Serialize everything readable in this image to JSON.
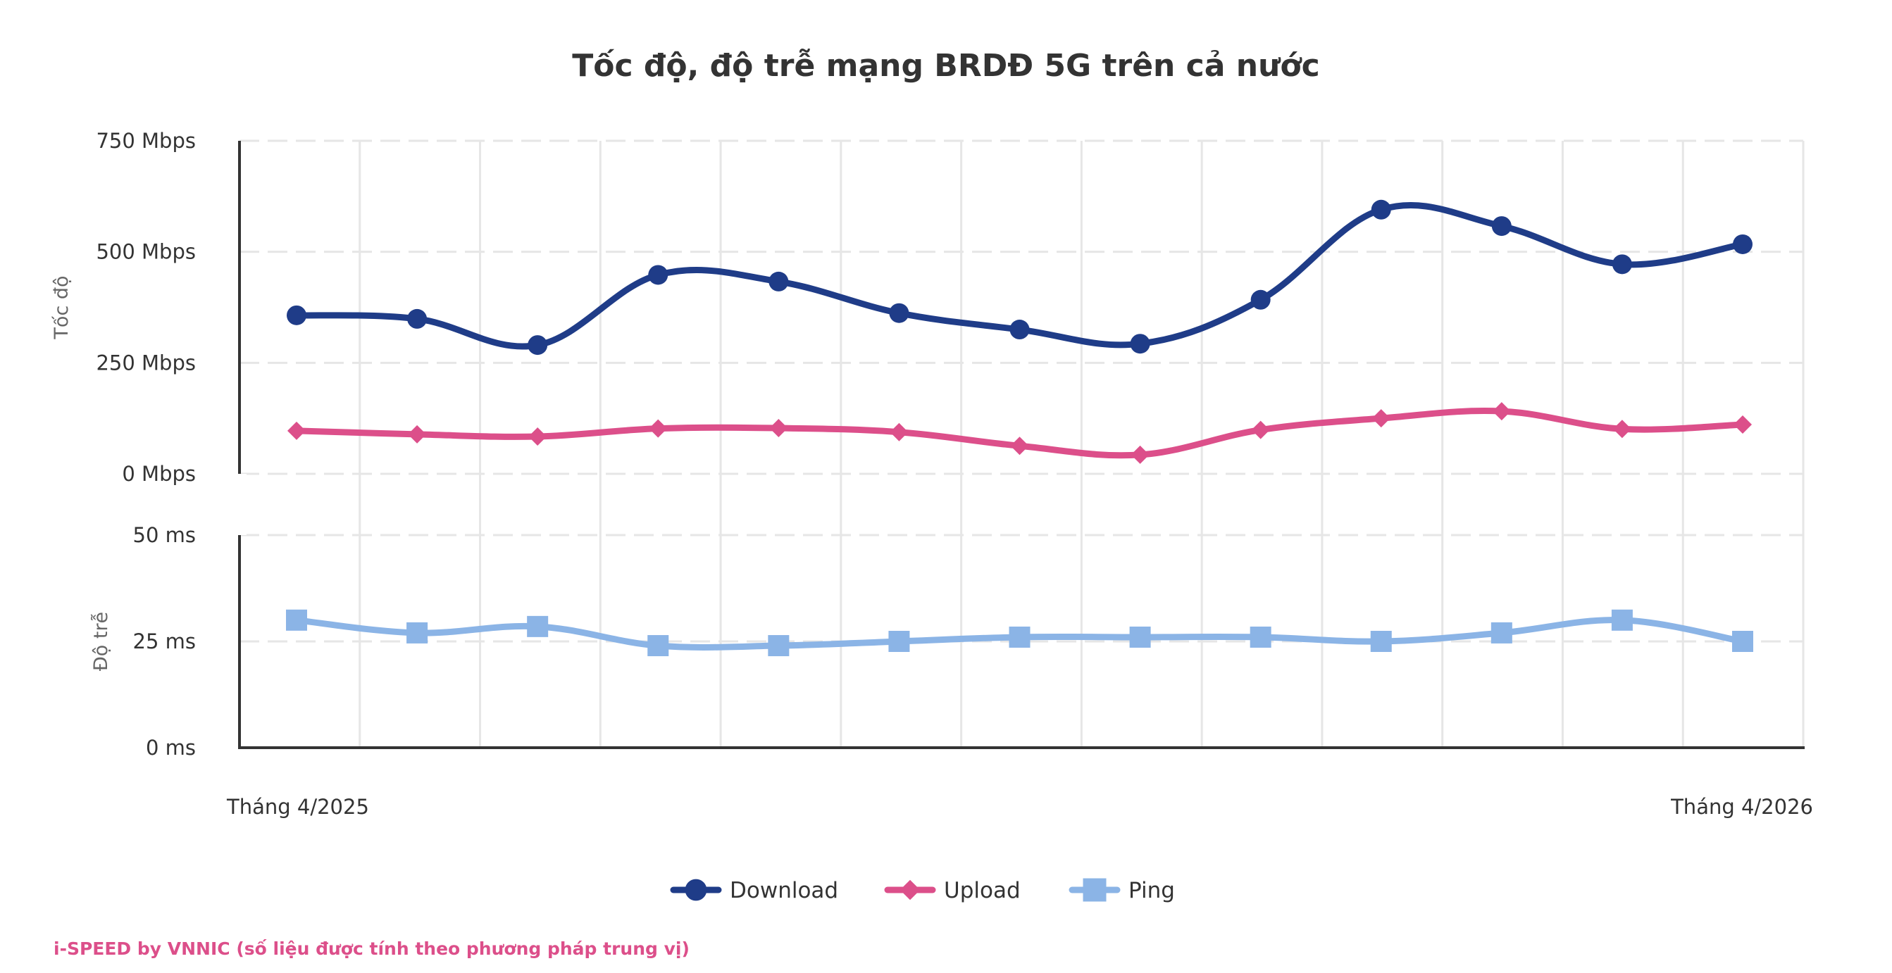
{
  "chart_data": {
    "type": "line",
    "title": "Tốc độ, độ trễ mạng BRDĐ 5G trên cả nước",
    "x": [
      "Tháng 4/2025",
      "",
      "",
      "",
      "",
      "",
      "",
      "",
      "",
      "",
      "",
      "",
      "Tháng 4/2026"
    ],
    "x_tick_labels": [
      "Tháng 4/2025",
      "Tháng 4/2026"
    ],
    "panels": [
      {
        "id": "speed",
        "ylabel": "Tốc độ",
        "ylim": [
          0,
          750
        ],
        "y_ticks": [
          0,
          250,
          500,
          750
        ],
        "y_tick_labels": [
          "0 Mbps",
          "250 Mbps",
          "500 Mbps",
          "750 Mbps"
        ],
        "series": [
          {
            "name": "Download",
            "color": "#1f3c88",
            "marker": "circle",
            "values": [
              357,
              349,
              290,
              448,
              433,
              362,
              325,
              293,
              392,
              595,
              558,
              472,
              517
            ]
          },
          {
            "name": "Upload",
            "color": "#dc4f8a",
            "marker": "diamond",
            "values": [
              97,
              89,
              84,
              102,
              103,
              94,
              63,
              43,
              99,
              125,
              141,
              101,
              111
            ]
          }
        ]
      },
      {
        "id": "latency",
        "ylabel": "Độ trễ",
        "ylim": [
          0,
          50
        ],
        "y_ticks": [
          0,
          25,
          50
        ],
        "y_tick_labels": [
          "0 ms",
          "25 ms",
          "50 ms"
        ],
        "series": [
          {
            "name": "Ping",
            "color": "#8bb4e6",
            "marker": "square",
            "values": [
              30,
              27,
              28.5,
              24,
              24,
              25,
              26,
              26,
              26,
              25,
              27,
              30,
              25
            ]
          }
        ]
      }
    ],
    "grid": true,
    "legend": {
      "placement": "bottom-center",
      "entries": [
        "Download",
        "Upload",
        "Ping"
      ]
    },
    "credit": "i-SPEED by VNNIC (số liệu được tính theo phương pháp trung vị)",
    "credit_color": "#dc4f8a",
    "grid_color": "#e6e6e6",
    "axis_color": "#333333"
  }
}
